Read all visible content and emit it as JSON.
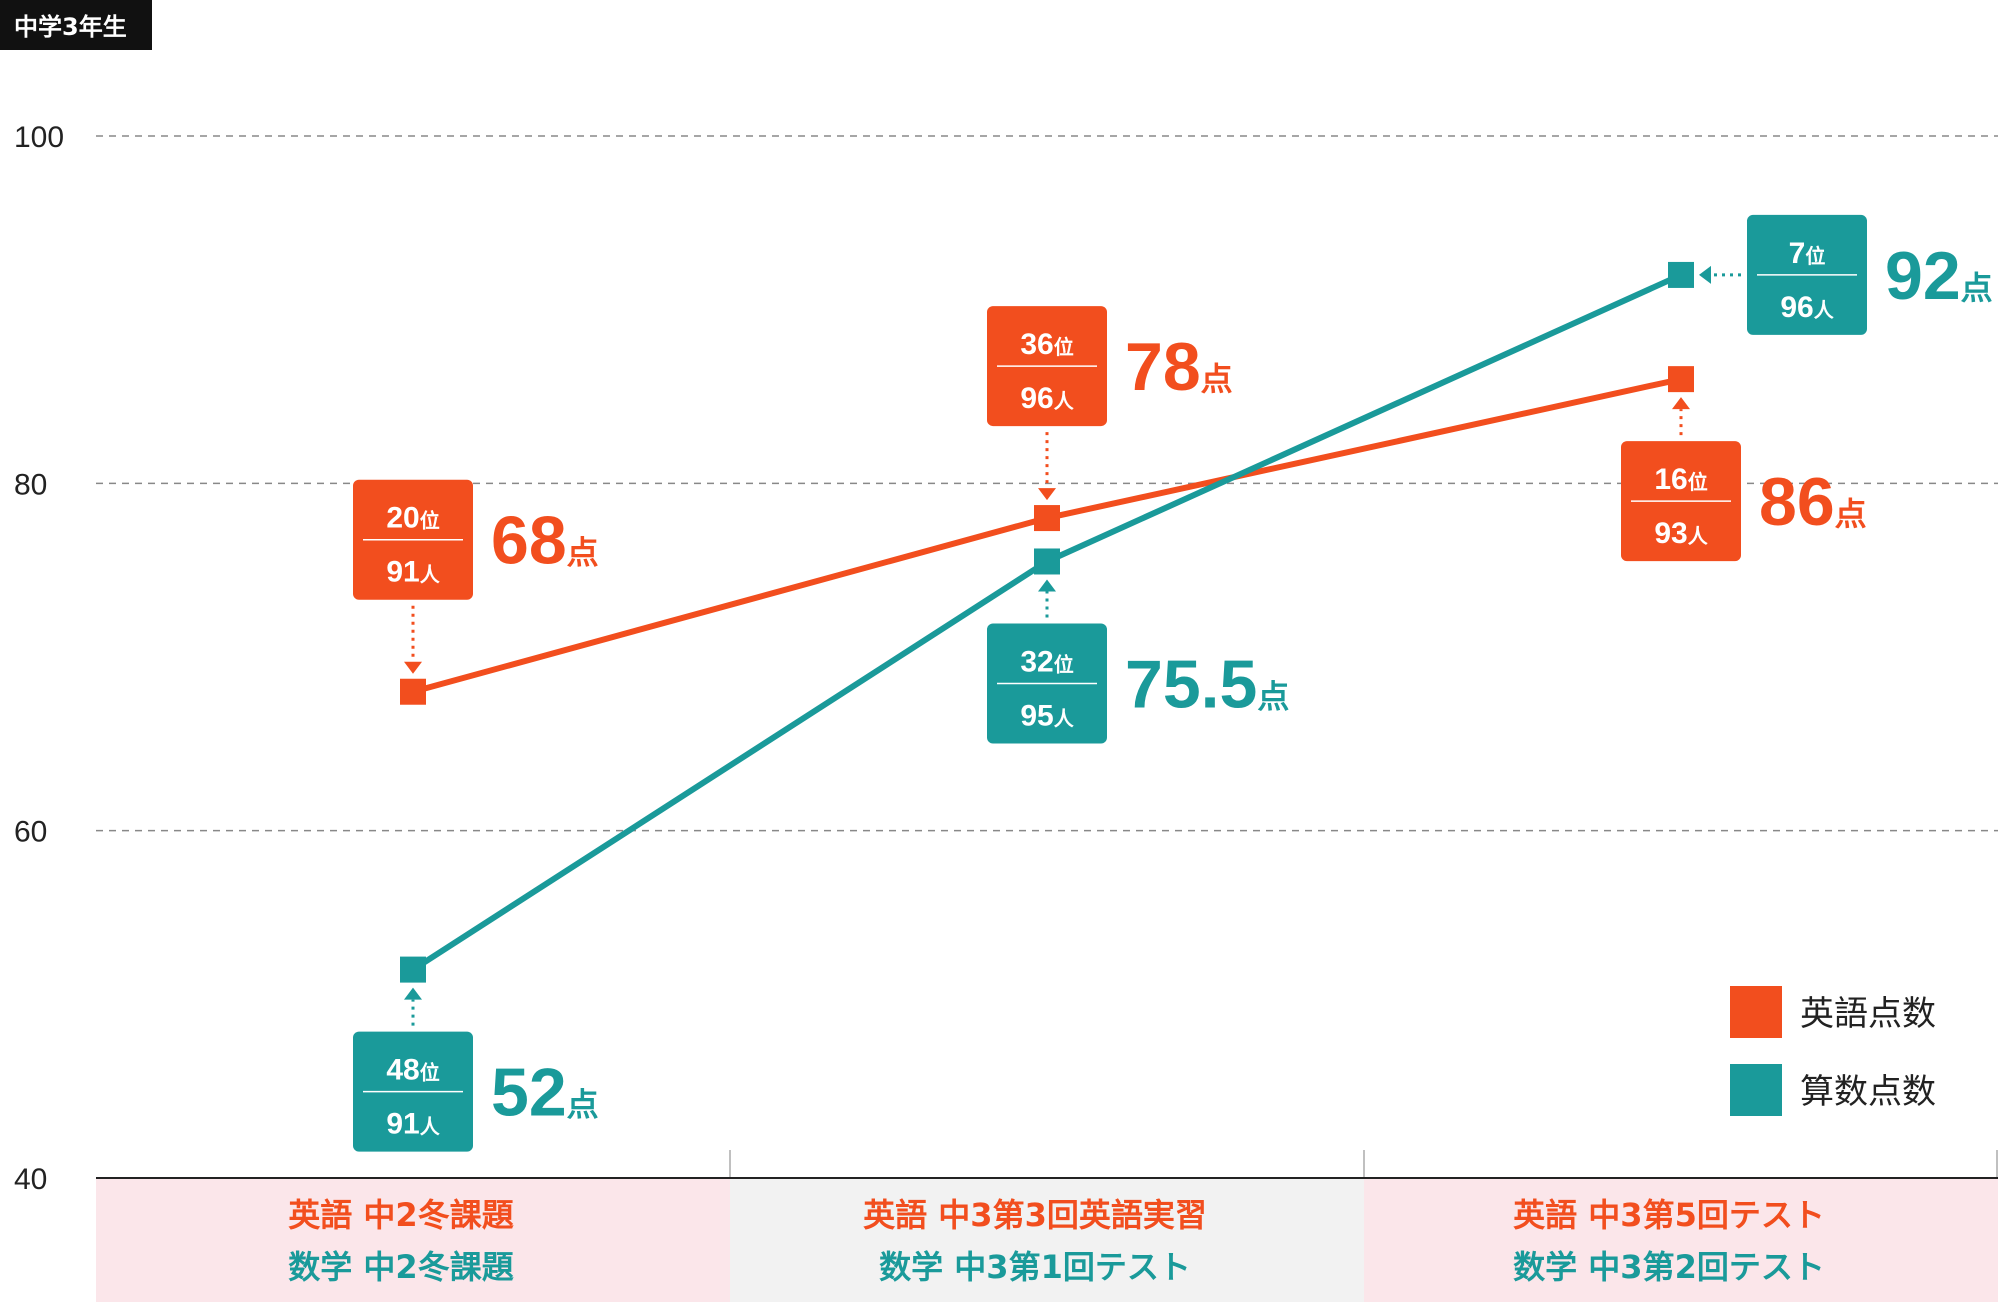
{
  "chart_data": {
    "type": "line",
    "title": "中学3年生",
    "ylim": [
      40,
      100
    ],
    "yticks": [
      40,
      60,
      80,
      100
    ],
    "grid": true,
    "legend_position": "bottom-right",
    "point_suffix": "点",
    "rank_suffix": "位",
    "people_suffix": "人",
    "categories": [
      {
        "english": "英語 中2冬課題",
        "math": "数学 中2冬課題",
        "background": "#fbe6ea"
      },
      {
        "english": "英語 中3第3回英語実習",
        "math": "数学 中3第1回テスト",
        "background": "#f2f2f2"
      },
      {
        "english": "英語 中3第5回テスト",
        "math": "数学 中3第2回テスト",
        "background": "#fbe6ea"
      }
    ],
    "series": [
      {
        "name": "英語点数",
        "color": "#f24e1e",
        "values": [
          68,
          78,
          86
        ],
        "ranks": [
          20,
          36,
          16
        ],
        "totals": [
          91,
          96,
          93
        ],
        "score_labels": [
          "68",
          "78",
          "86"
        ]
      },
      {
        "name": "算数点数",
        "color": "#1a9a9a",
        "values": [
          52,
          75.5,
          92
        ],
        "ranks": [
          48,
          32,
          7
        ],
        "totals": [
          91,
          95,
          96
        ],
        "score_labels": [
          "52",
          "75.5",
          "92"
        ]
      }
    ]
  }
}
